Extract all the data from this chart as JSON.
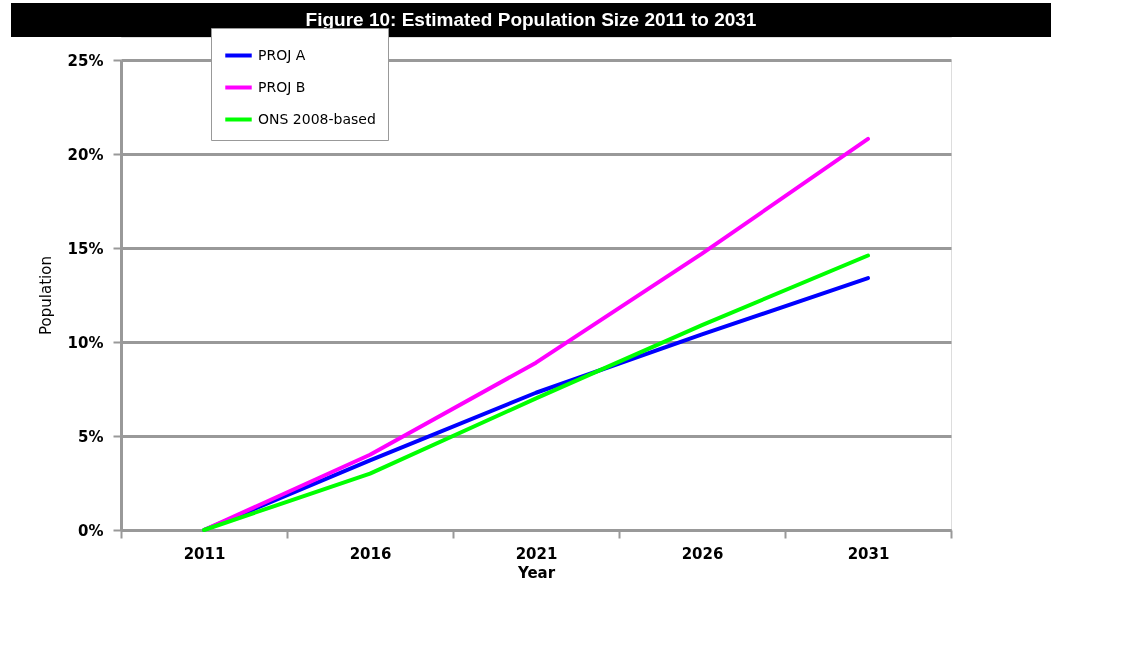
{
  "chart_data": {
    "type": "line",
    "title": "Figure 10: Estimated Population Size 2011 to 2031",
    "xlabel": "Year",
    "ylabel": "Population",
    "categories": [
      "2011",
      "2016",
      "2021",
      "2026",
      "2031"
    ],
    "series": [
      {
        "name": "PROJ A",
        "color": "#0000ff",
        "values": [
          0,
          3.7,
          7.3,
          10.4,
          13.4
        ]
      },
      {
        "name": "PROJ B",
        "color": "#ff00ff",
        "values": [
          0,
          4.0,
          8.9,
          14.7,
          20.8
        ]
      },
      {
        "name": "ONS 2008-based",
        "color": "#00ff00",
        "values": [
          0,
          3.0,
          7.0,
          10.9,
          14.6
        ]
      }
    ],
    "ylim": [
      0,
      25
    ],
    "yticks": [
      {
        "value": 0,
        "label": "0%"
      },
      {
        "value": 5,
        "label": "5%"
      },
      {
        "value": 10,
        "label": "10%"
      },
      {
        "value": 15,
        "label": "15%"
      },
      {
        "value": 20,
        "label": "20%"
      },
      {
        "value": 25,
        "label": "25%"
      }
    ],
    "grid": "y",
    "legend": "top left",
    "marker": "none",
    "line_style": "solid"
  }
}
